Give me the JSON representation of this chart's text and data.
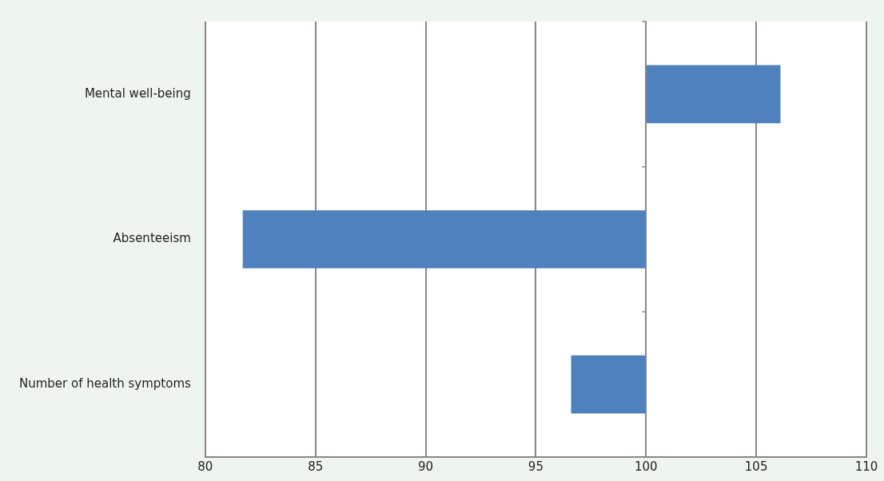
{
  "chart_data": {
    "type": "bar",
    "orientation": "horizontal",
    "categories": [
      "Mental well-being",
      "Absenteeism",
      "Number of health symptoms"
    ],
    "base": [
      100,
      100,
      100
    ],
    "values": [
      6.1,
      -18.3,
      -3.4
    ],
    "color": "#4f81bd",
    "xlim": [
      80,
      110
    ],
    "xticks": [
      80,
      85,
      90,
      95,
      100,
      105,
      110
    ],
    "ref_lines": [
      {
        "axis": "x",
        "value": 100,
        "color": "#888888"
      }
    ],
    "grid": "x",
    "legend": false
  }
}
